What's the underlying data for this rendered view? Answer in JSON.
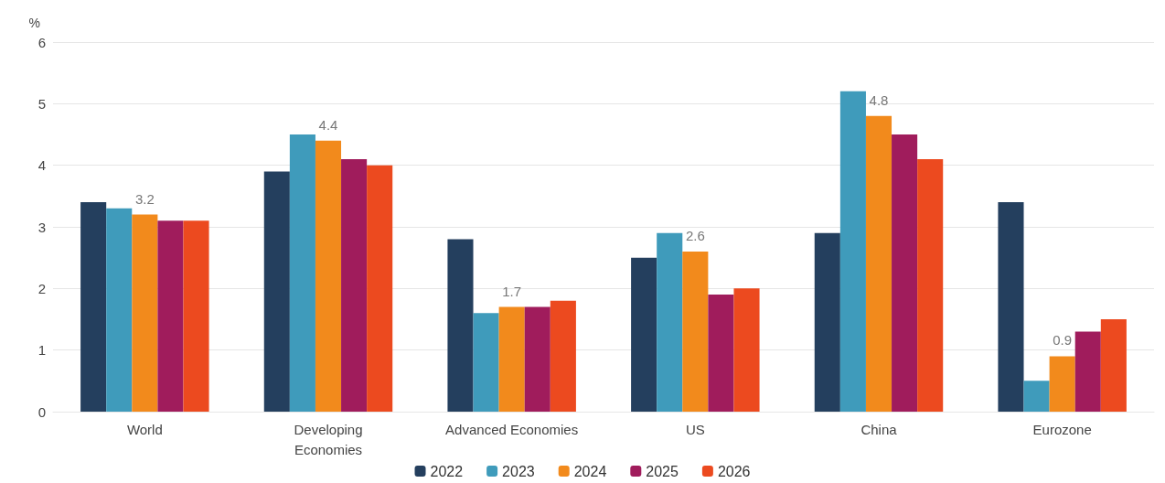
{
  "chart_data": {
    "type": "bar",
    "ylabel": "%",
    "categories": [
      "World",
      "Developing\nEconomies",
      "Advanced Economies",
      "US",
      "China",
      "Eurozone"
    ],
    "series": [
      {
        "name": "2022",
        "color": "#243f5e",
        "values": [
          3.4,
          3.9,
          2.8,
          2.5,
          2.9,
          3.4
        ]
      },
      {
        "name": "2023",
        "color": "#3f9bbb",
        "values": [
          3.3,
          4.5,
          1.6,
          2.9,
          5.2,
          0.5
        ]
      },
      {
        "name": "2024",
        "color": "#f28a1c",
        "values": [
          3.2,
          4.4,
          1.7,
          2.6,
          4.8,
          0.9
        ],
        "value_labels": [
          "3.2",
          "4.4",
          "1.7",
          "2.6",
          "4.8",
          "0.9"
        ]
      },
      {
        "name": "2025",
        "color": "#a01c5c",
        "values": [
          3.1,
          4.1,
          1.7,
          1.9,
          4.5,
          1.3
        ]
      },
      {
        "name": "2026",
        "color": "#ec4a1f",
        "values": [
          3.1,
          4.0,
          1.8,
          2.0,
          4.1,
          1.5
        ]
      }
    ],
    "ylim": [
      0,
      6
    ],
    "yticks": [
      0,
      1,
      2,
      3,
      4,
      5,
      6
    ],
    "grid": "y",
    "legend": "bottom"
  }
}
